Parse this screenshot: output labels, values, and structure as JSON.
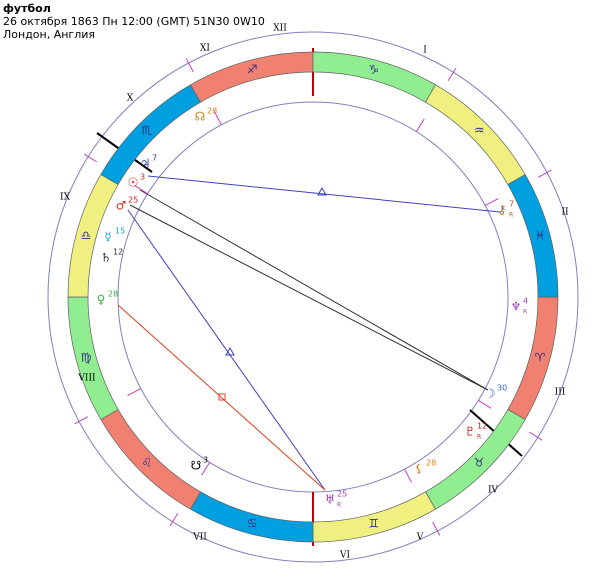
{
  "header": {
    "title": "футбол",
    "date": "26 октября 1863  Пн  12:00 (GMT) 51N30  0W10",
    "place": "Лондон, Англия"
  },
  "signs": [
    "♈",
    "♉",
    "♊",
    "♋",
    "♌",
    "♍",
    "♎",
    "♏",
    "♐",
    "♑",
    "♒",
    "♓"
  ],
  "houses": [
    "I",
    "II",
    "III",
    "IV",
    "V",
    "VI",
    "VII",
    "VIII",
    "IX",
    "X",
    "XI",
    "XII"
  ],
  "planets": [
    {
      "glyph": "♃",
      "degree": "7"
    },
    {
      "glyph": "☉",
      "degree": "3"
    },
    {
      "glyph": "♂",
      "degree": "25"
    },
    {
      "glyph": "☿",
      "degree": "15"
    },
    {
      "glyph": "♄",
      "degree": "12"
    },
    {
      "glyph": "♀",
      "degree": "28"
    },
    {
      "glyph": "☊",
      "degree": "28"
    },
    {
      "glyph": "⚷",
      "degree": "7",
      "retro": "R"
    },
    {
      "glyph": "♆",
      "degree": "4",
      "retro": "R"
    },
    {
      "glyph": "☽",
      "degree": "30"
    },
    {
      "glyph": "♇",
      "degree": "12",
      "retro": "R"
    },
    {
      "glyph": "⚸",
      "degree": "28"
    },
    {
      "glyph": "♅",
      "degree": "25",
      "retro": "R"
    },
    {
      "glyph": "☋",
      "degree": "3"
    }
  ]
}
